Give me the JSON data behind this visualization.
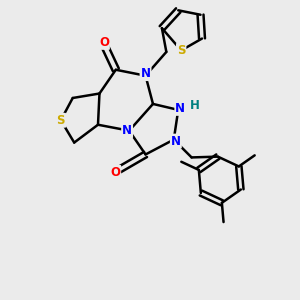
{
  "bg_color": "#ebebeb",
  "atom_colors": {
    "C": "#000000",
    "N": "#0000ff",
    "O": "#ff0000",
    "S": "#ccaa00",
    "H": "#008080"
  },
  "bond_color": "#000000",
  "bond_width": 1.8,
  "figsize": [
    3.0,
    3.0
  ],
  "dpi": 100,
  "xlim": [
    0,
    10
  ],
  "ylim": [
    0,
    10
  ]
}
